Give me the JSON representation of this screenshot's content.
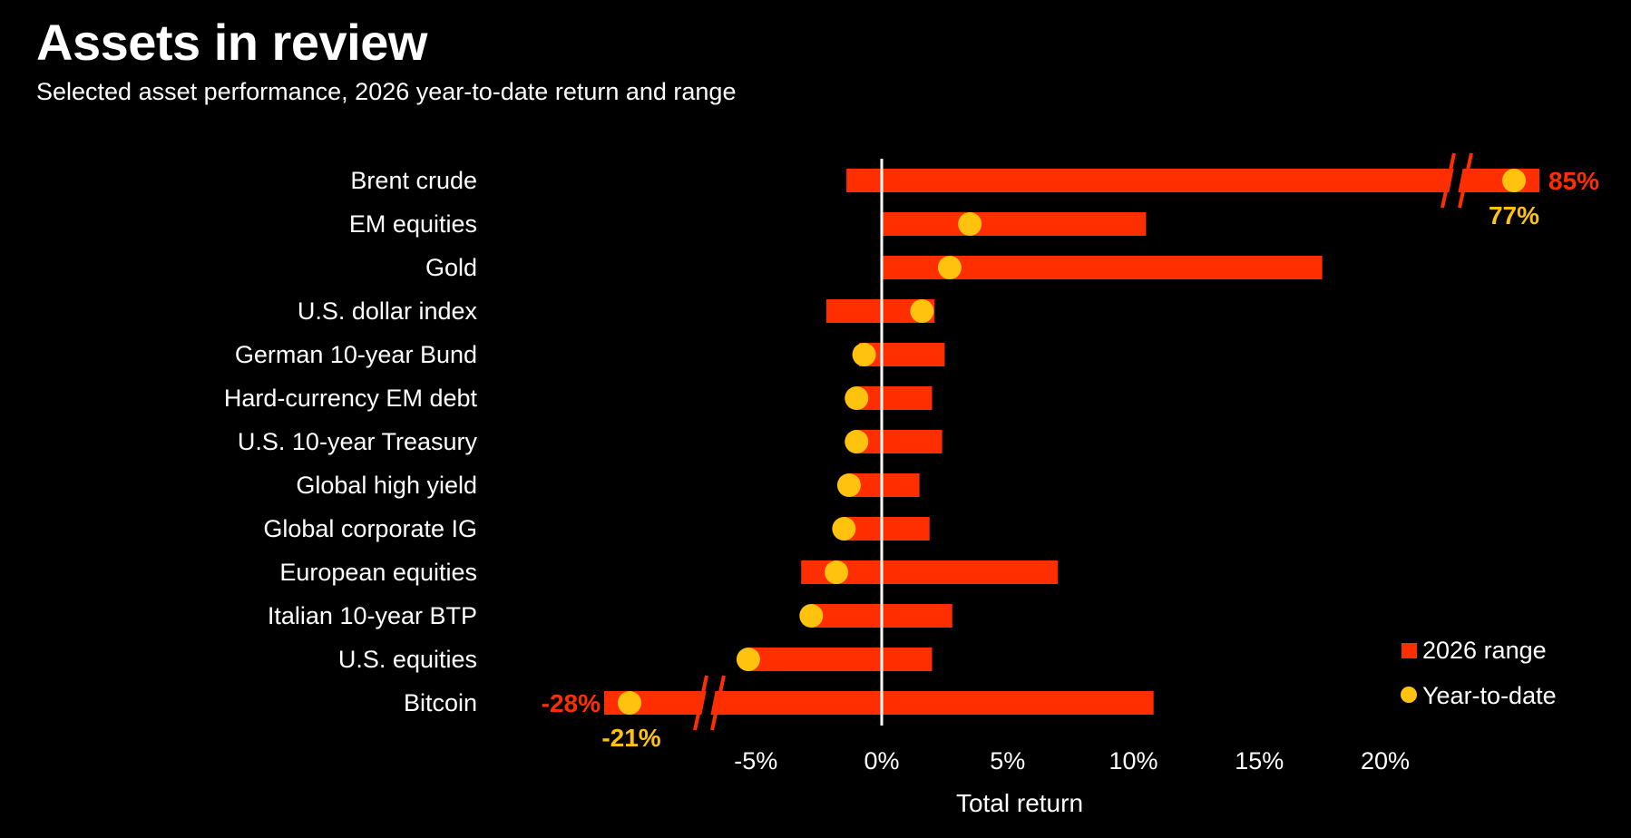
{
  "header": {
    "title": "Assets in review",
    "subtitle": "Selected asset performance, 2026 year-to-date return and range"
  },
  "chart_data": {
    "type": "range_dot",
    "title": "Assets in review",
    "subtitle": "Selected asset performance, 2026 year-to-date return and range",
    "xlabel": "Total return",
    "ylabel": "",
    "xlim": [
      -11,
      21
    ],
    "xticks": [
      -5,
      0,
      5,
      10,
      15,
      20
    ],
    "xtick_labels": [
      "-5%",
      "0%",
      "5%",
      "10%",
      "15%",
      "20%"
    ],
    "categories": [
      "Brent crude",
      "EM equities",
      "Gold",
      "U.S. dollar index",
      "German 10-year Bund",
      "Hard-currency EM debt",
      "U.S. 10-year Treasury",
      "Global high yield",
      "Global corporate IG",
      "European equities",
      "Italian 10-year BTP",
      "U.S. equities",
      "Bitcoin"
    ],
    "series": [
      {
        "name": "2026 range",
        "color": "#FF2E00",
        "low": [
          -1.4,
          0,
          0,
          -2.2,
          -0.9,
          -1.0,
          -1.1,
          -1.3,
          -1.5,
          -3.2,
          -2.8,
          -5.3,
          -28
        ],
        "high": [
          85,
          10.5,
          17.5,
          2.1,
          2.5,
          2.0,
          2.4,
          1.5,
          1.9,
          7.0,
          2.8,
          2.0,
          10.8
        ]
      },
      {
        "name": "Year-to-date",
        "color": "#FFC20E",
        "values": [
          77,
          3.5,
          2.7,
          1.6,
          -0.7,
          -1.0,
          -1.0,
          -1.3,
          -1.5,
          -1.8,
          -2.8,
          -5.3,
          -21
        ]
      }
    ],
    "axis_breaks": [
      {
        "category": "Brent crude",
        "side": "high",
        "high_label": "85%",
        "ytd_label": "77%"
      },
      {
        "category": "Bitcoin",
        "side": "low",
        "low_label": "-28%",
        "ytd_label": "-21%"
      }
    ],
    "legend": {
      "position": "bottom-right",
      "entries": [
        "2026 range",
        "Year-to-date"
      ]
    },
    "zero_line": true,
    "grid": false
  }
}
